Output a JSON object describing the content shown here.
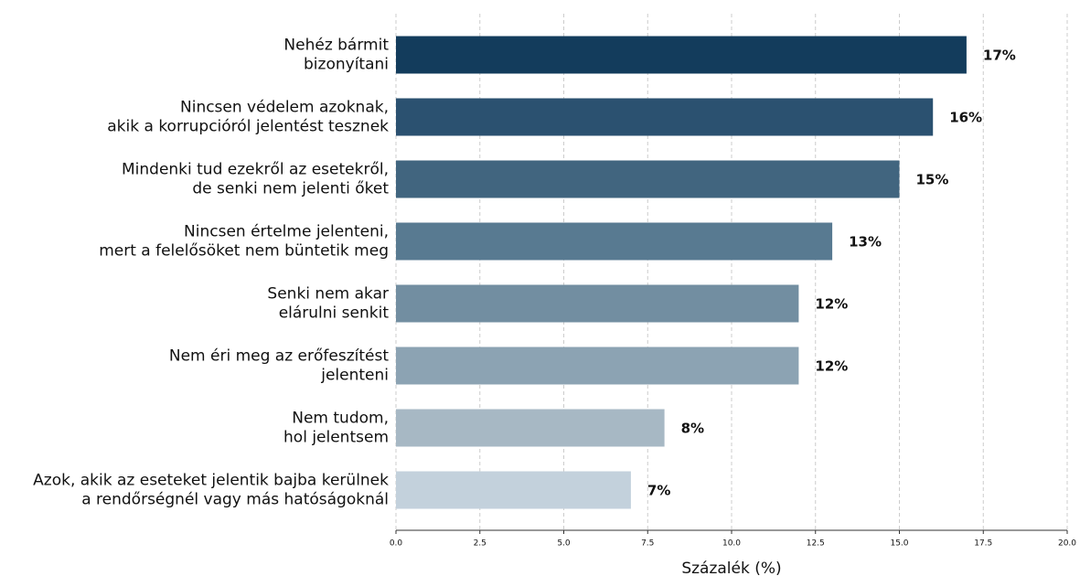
{
  "chart_data": {
    "type": "barh",
    "xlabel": "Százalék (%)",
    "categories": [
      [
        "Nehéz bármit",
        "bizonyítani"
      ],
      [
        "Nincsen védelem azoknak,",
        "akik a korrupcióról jelentést tesznek"
      ],
      [
        "Mindenki tud ezekről az esetekről,",
        "de senki nem jelenti őket"
      ],
      [
        "Nincsen értelme jelenteni,",
        "mert a felelősöket nem büntetik meg"
      ],
      [
        "Senki nem akar",
        "elárulni senkit"
      ],
      [
        "Nem éri meg az erőfeszítést",
        "jelenteni"
      ],
      [
        "Nem tudom,",
        "hol jelentsem"
      ],
      [
        "Azok, akik az eseteket jelentik bajba kerülnek",
        "a rendőrségnél vagy más hatóságoknál"
      ]
    ],
    "values": [
      17,
      16,
      15,
      13,
      12,
      12,
      8,
      7
    ],
    "value_labels": [
      "17%",
      "16%",
      "15%",
      "13%",
      "12%",
      "12%",
      "8%",
      "7%"
    ],
    "colors": [
      "#133c5c",
      "#2b5170",
      "#41657f",
      "#587a91",
      "#728ea1",
      "#8ca3b3",
      "#a7b8c4",
      "#c3d1dc"
    ],
    "xlim": [
      0,
      20
    ],
    "xticks": [
      {
        "value": 0,
        "label": "0.0"
      },
      2.5,
      {
        "value": 5,
        "label": "5.0"
      },
      7.5,
      {
        "value": 10,
        "label": "10.0"
      },
      12.5,
      {
        "value": 15,
        "label": "15.0"
      },
      17.5,
      {
        "value": 20,
        "label": "20.0"
      }
    ],
    "grid": true
  }
}
